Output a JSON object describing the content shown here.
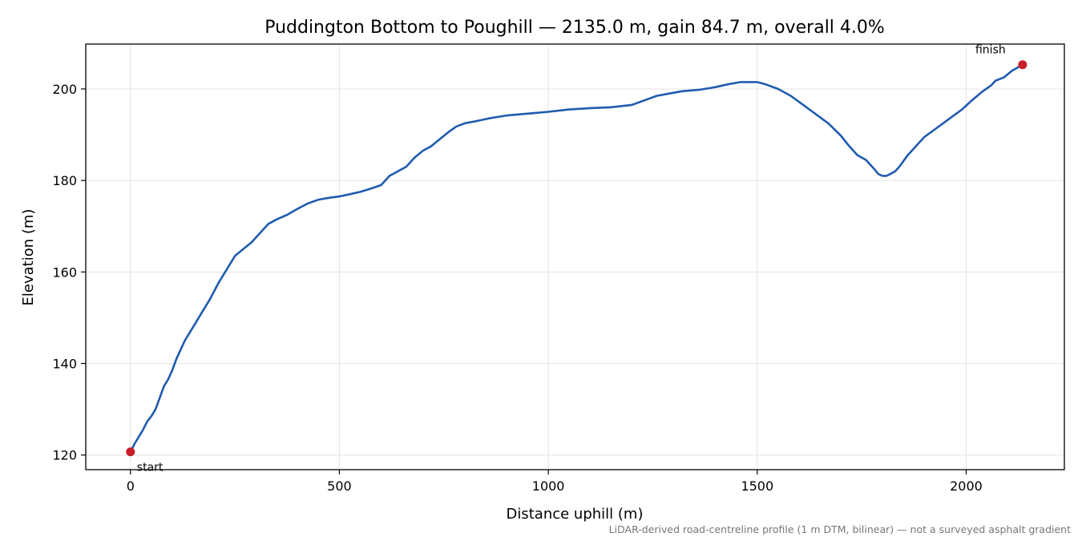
{
  "chart_data": {
    "type": "line",
    "title": "Puddington Bottom to Poughill — 2135.0 m, gain 84.7 m, overall 4.0%",
    "xlabel": "Distance uphill (m)",
    "ylabel": "Elevation (m)",
    "xlim": [
      -107,
      2235
    ],
    "ylim": [
      116.8,
      209.8
    ],
    "x_ticks": [
      0,
      500,
      1000,
      1500,
      2000
    ],
    "y_ticks": [
      120,
      140,
      160,
      180,
      200
    ],
    "grid": true,
    "line_color": "#1f5bb0",
    "marker_color": "#c81e28",
    "series": [
      {
        "x": [
          0,
          10,
          20,
          30,
          40,
          50,
          60,
          70,
          80,
          90,
          100,
          110,
          120,
          130,
          140,
          150,
          170,
          190,
          210,
          230,
          250,
          270,
          290,
          310,
          330,
          350,
          375,
          400,
          425,
          450,
          475,
          500,
          525,
          550,
          575,
          600,
          610,
          620,
          630,
          640,
          650,
          660,
          670,
          680,
          700,
          720,
          740,
          760,
          780,
          800,
          830,
          860,
          900,
          950,
          1000,
          1050,
          1100,
          1150,
          1200,
          1230,
          1260,
          1290,
          1320,
          1360,
          1400,
          1430,
          1460,
          1500,
          1520,
          1550,
          1580,
          1610,
          1640,
          1670,
          1700,
          1720,
          1740,
          1760,
          1780,
          1790,
          1800,
          1810,
          1820,
          1830,
          1840,
          1860,
          1880,
          1900,
          1930,
          1960,
          1990,
          2010,
          2040,
          2060,
          2070,
          2090,
          2110,
          2120,
          2135
        ],
        "y": [
          120.7,
          122.5,
          124.0,
          125.5,
          127.3,
          128.5,
          130.0,
          132.5,
          135.0,
          136.5,
          138.5,
          141.0,
          143.0,
          145.0,
          146.5,
          148.0,
          151.0,
          154.0,
          157.5,
          160.5,
          163.5,
          165.0,
          166.5,
          168.5,
          170.5,
          171.5,
          172.5,
          173.8,
          175.0,
          175.8,
          176.2,
          176.5,
          177.0,
          177.5,
          178.2,
          179.0,
          180.0,
          181.0,
          181.5,
          182.0,
          182.5,
          183.0,
          184.0,
          185.0,
          186.5,
          187.5,
          189.0,
          190.5,
          191.8,
          192.5,
          193.0,
          193.6,
          194.2,
          194.6,
          195.0,
          195.5,
          195.8,
          196.0,
          196.5,
          197.5,
          198.5,
          199.0,
          199.5,
          199.8,
          200.4,
          201.0,
          201.5,
          201.5,
          201.0,
          200.0,
          198.5,
          196.5,
          194.5,
          192.5,
          189.8,
          187.5,
          185.5,
          184.5,
          182.5,
          181.4,
          181.0,
          181.0,
          181.5,
          182.0,
          183.0,
          185.5,
          187.5,
          189.5,
          191.5,
          193.5,
          195.5,
          197.2,
          199.5,
          200.8,
          201.8,
          202.5,
          204.0,
          204.5,
          205.3
        ]
      }
    ],
    "annotations": [
      {
        "text": "start",
        "x": 0,
        "y": 120.7
      },
      {
        "text": "finish",
        "x": 2135,
        "y": 205.3
      }
    ],
    "footnote": "LiDAR-derived road-centreline profile (1 m DTM, bilinear) — not a surveyed asphalt gradient"
  }
}
